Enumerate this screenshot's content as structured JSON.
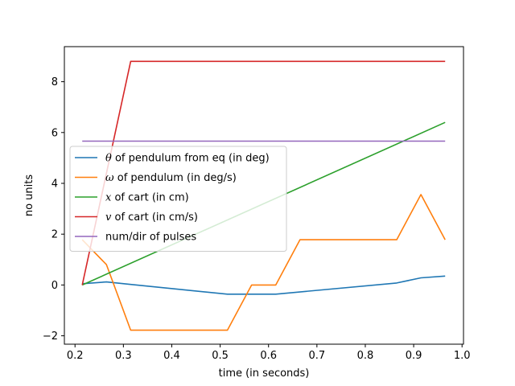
{
  "chart_data": {
    "type": "line",
    "xlabel": "time (in seconds)",
    "ylabel": "no units",
    "xlim": [
      0.178,
      1.003
    ],
    "ylim": [
      -2.33,
      9.38
    ],
    "xticks": [
      0.2,
      0.3,
      0.4,
      0.5,
      0.6,
      0.7,
      0.8,
      0.9,
      1.0
    ],
    "xtick_labels": [
      "0.2",
      "0.3",
      "0.4",
      "0.5",
      "0.6",
      "0.7",
      "0.8",
      "0.9",
      "1.0"
    ],
    "yticks": [
      -2,
      0,
      2,
      4,
      6,
      8
    ],
    "ytick_labels": [
      "−2",
      "0",
      "2",
      "4",
      "6",
      "8"
    ],
    "grid": false,
    "legend_position": "center-left",
    "series": [
      {
        "name": "of pendulum from eq (in deg)",
        "symbol": "θ",
        "color": "#1f77b4",
        "x": [
          0.215,
          0.265,
          0.315,
          0.515,
          0.565,
          0.615,
          0.865,
          0.915,
          0.965
        ],
        "y": [
          0.05,
          0.12,
          0.02,
          -0.36,
          -0.36,
          -0.36,
          0.08,
          0.28,
          0.35
        ]
      },
      {
        "name": "of pendulum (in deg/s)",
        "symbol": "ω",
        "color": "#ff7f0e",
        "x": [
          0.215,
          0.265,
          0.315,
          0.515,
          0.565,
          0.615,
          0.665,
          0.865,
          0.915,
          0.965
        ],
        "y": [
          1.78,
          0.8,
          -1.78,
          -1.78,
          0.0,
          0.0,
          1.78,
          1.78,
          3.56,
          1.78
        ]
      },
      {
        "name": "of cart (in cm)",
        "symbol": "x",
        "color": "#2ca02c",
        "x": [
          0.215,
          0.965
        ],
        "y": [
          0.0,
          6.4
        ]
      },
      {
        "name": "of cart  (in cm/s)",
        "symbol": "v",
        "color": "#d62728",
        "x": [
          0.215,
          0.315,
          0.965
        ],
        "y": [
          0.0,
          8.8,
          8.8
        ]
      },
      {
        "name": "num/dir of pulses",
        "symbol": "",
        "color": "#9467bd",
        "x": [
          0.215,
          0.965
        ],
        "y": [
          5.66,
          5.66
        ]
      }
    ]
  }
}
